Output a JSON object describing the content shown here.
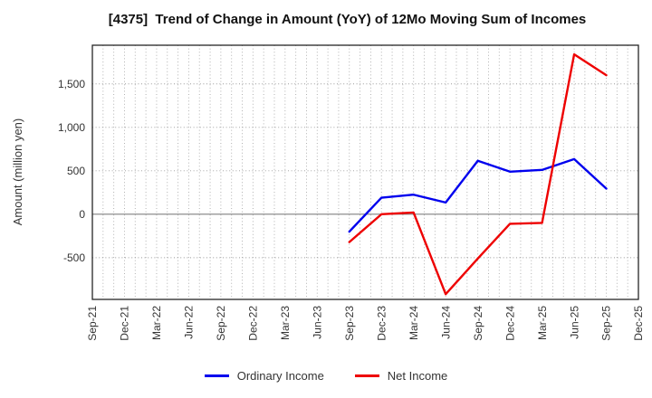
{
  "chart_data": {
    "type": "line",
    "title": "[4375]  Trend of Change in Amount (YoY) of 12Mo Moving Sum of Incomes",
    "xlabel": "",
    "ylabel": "Amount (million yen)",
    "categories": [
      "Sep-21",
      "Dec-21",
      "Mar-22",
      "Jun-22",
      "Sep-22",
      "Dec-22",
      "Mar-23",
      "Jun-23",
      "Sep-23",
      "Dec-23",
      "Mar-24",
      "Jun-24",
      "Sep-24",
      "Dec-24",
      "Mar-25",
      "Jun-25",
      "Sep-25",
      "Dec-25"
    ],
    "months_per_interval": 3,
    "series": [
      {
        "name": "Ordinary Income",
        "color": "#0000ee",
        "values": [
          null,
          null,
          null,
          null,
          null,
          null,
          null,
          null,
          -200,
          190,
          225,
          135,
          615,
          490,
          510,
          635,
          295,
          null
        ]
      },
      {
        "name": "Net Income",
        "color": "#ee0000",
        "values": [
          null,
          null,
          null,
          null,
          null,
          null,
          null,
          null,
          -320,
          0,
          20,
          -920,
          -510,
          -110,
          -100,
          1840,
          1600,
          null
        ]
      }
    ],
    "ylim": [
      -980,
      1945
    ],
    "yticks": [
      {
        "value": -500,
        "label": "-500"
      },
      {
        "value": 0,
        "label": "0"
      },
      {
        "value": 500,
        "label": "500"
      },
      {
        "value": 1000,
        "label": "1,000"
      },
      {
        "value": 1500,
        "label": "1,500"
      }
    ],
    "grid": {
      "vertical": "monthly dotted",
      "horizontal": "dotted every 500",
      "zero_line": "solid"
    },
    "legend_position": "bottom-center"
  }
}
